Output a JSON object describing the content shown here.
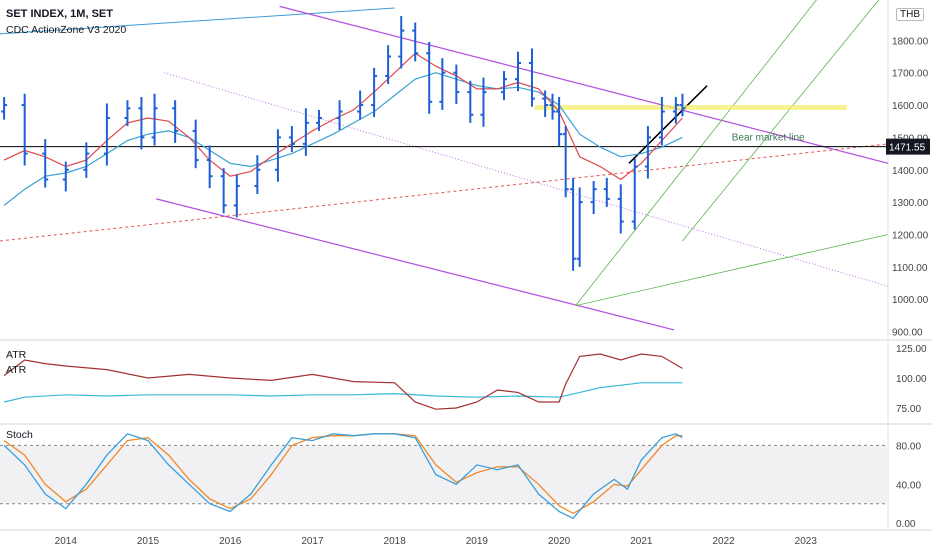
{
  "header": {
    "title": "SET INDEX, 1M, SET",
    "indicator": "CDC ActionZone V3 2020",
    "currency": "THB"
  },
  "colors": {
    "bar": "#1e5fd6",
    "ema_fast": "#e0474c",
    "ema_slow": "#3aa0d8",
    "channel": "#b24ee0",
    "pitchfork": "#5bb450",
    "atr_line": "#a33030",
    "atr_ma": "#38b8d8",
    "stoch_k": "#3aa0d8",
    "stoch_d": "#f08a2c",
    "support_zone": "#f5ef6a",
    "horizontal": "#000000",
    "price_badge": "#131722"
  },
  "chart_data": [
    {
      "type": "ohlc",
      "title": "SET INDEX, 1M, SET",
      "y_ticks": [
        "1800.00",
        "1700.00",
        "1600.00",
        "1500.00",
        "1400.00",
        "1300.00",
        "1200.00",
        "1100.00",
        "1000.00",
        "900.00"
      ],
      "ylim": [
        880,
        1900
      ],
      "x_ticks": [
        "2014",
        "2015",
        "2016",
        "2017",
        "2018",
        "2019",
        "2020",
        "2021",
        "2022",
        "2023"
      ],
      "xlim": [
        2013.2,
        2024.0
      ],
      "last_price": "1471.55",
      "horizontal_level": 1471.55,
      "annotation": "Bear market line",
      "series_close": [
        [
          2013.25,
          1600
        ],
        [
          2013.5,
          1450
        ],
        [
          2013.75,
          1370
        ],
        [
          2014.0,
          1400
        ],
        [
          2014.25,
          1450
        ],
        [
          2014.5,
          1560
        ],
        [
          2014.75,
          1590
        ],
        [
          2014.92,
          1500
        ],
        [
          2015.08,
          1590
        ],
        [
          2015.33,
          1520
        ],
        [
          2015.58,
          1430
        ],
        [
          2015.75,
          1380
        ],
        [
          2015.92,
          1290
        ],
        [
          2016.08,
          1350
        ],
        [
          2016.33,
          1400
        ],
        [
          2016.58,
          1500
        ],
        [
          2016.75,
          1480
        ],
        [
          2016.92,
          1545
        ],
        [
          2017.08,
          1560
        ],
        [
          2017.33,
          1580
        ],
        [
          2017.58,
          1600
        ],
        [
          2017.75,
          1690
        ],
        [
          2017.92,
          1750
        ],
        [
          2018.08,
          1830
        ],
        [
          2018.25,
          1760
        ],
        [
          2018.42,
          1610
        ],
        [
          2018.58,
          1700
        ],
        [
          2018.75,
          1640
        ],
        [
          2018.92,
          1570
        ],
        [
          2019.08,
          1640
        ],
        [
          2019.33,
          1680
        ],
        [
          2019.5,
          1730
        ],
        [
          2019.67,
          1620
        ],
        [
          2019.83,
          1600
        ],
        [
          2019.92,
          1580
        ],
        [
          2020.0,
          1510
        ],
        [
          2020.08,
          1340
        ],
        [
          2020.17,
          1125
        ],
        [
          2020.25,
          1300
        ],
        [
          2020.42,
          1340
        ],
        [
          2020.58,
          1310
        ],
        [
          2020.75,
          1240
        ],
        [
          2020.92,
          1410
        ],
        [
          2021.08,
          1500
        ],
        [
          2021.25,
          1580
        ],
        [
          2021.42,
          1600
        ],
        [
          2021.5,
          1590
        ]
      ],
      "ema_fast": [
        [
          2013.25,
          1430
        ],
        [
          2013.5,
          1460
        ],
        [
          2013.75,
          1440
        ],
        [
          2014.0,
          1410
        ],
        [
          2014.25,
          1430
        ],
        [
          2014.5,
          1490
        ],
        [
          2014.75,
          1545
        ],
        [
          2015.0,
          1560
        ],
        [
          2015.25,
          1550
        ],
        [
          2015.5,
          1500
        ],
        [
          2015.75,
          1430
        ],
        [
          2016.0,
          1380
        ],
        [
          2016.25,
          1395
        ],
        [
          2016.5,
          1440
        ],
        [
          2016.75,
          1480
        ],
        [
          2017.0,
          1520
        ],
        [
          2017.25,
          1555
        ],
        [
          2017.5,
          1585
        ],
        [
          2017.75,
          1640
        ],
        [
          2018.0,
          1700
        ],
        [
          2018.25,
          1760
        ],
        [
          2018.5,
          1720
        ],
        [
          2018.75,
          1690
        ],
        [
          2019.0,
          1650
        ],
        [
          2019.25,
          1650
        ],
        [
          2019.5,
          1670
        ],
        [
          2019.75,
          1650
        ],
        [
          2020.0,
          1580
        ],
        [
          2020.25,
          1440
        ],
        [
          2020.5,
          1410
        ],
        [
          2020.75,
          1370
        ],
        [
          2021.0,
          1420
        ],
        [
          2021.25,
          1490
        ],
        [
          2021.5,
          1560
        ]
      ],
      "ema_slow": [
        [
          2013.25,
          1290
        ],
        [
          2013.5,
          1340
        ],
        [
          2013.75,
          1380
        ],
        [
          2014.0,
          1390
        ],
        [
          2014.25,
          1410
        ],
        [
          2014.5,
          1450
        ],
        [
          2014.75,
          1490
        ],
        [
          2015.0,
          1510
        ],
        [
          2015.25,
          1520
        ],
        [
          2015.5,
          1500
        ],
        [
          2015.75,
          1460
        ],
        [
          2016.0,
          1420
        ],
        [
          2016.25,
          1410
        ],
        [
          2016.5,
          1430
        ],
        [
          2016.75,
          1450
        ],
        [
          2017.0,
          1480
        ],
        [
          2017.25,
          1510
        ],
        [
          2017.5,
          1545
        ],
        [
          2017.75,
          1580
        ],
        [
          2018.0,
          1630
        ],
        [
          2018.25,
          1680
        ],
        [
          2018.5,
          1700
        ],
        [
          2018.75,
          1680
        ],
        [
          2019.0,
          1660
        ],
        [
          2019.25,
          1650
        ],
        [
          2019.5,
          1655
        ],
        [
          2019.75,
          1640
        ],
        [
          2020.0,
          1600
        ],
        [
          2020.25,
          1510
        ],
        [
          2020.5,
          1470
        ],
        [
          2020.75,
          1440
        ],
        [
          2021.0,
          1450
        ],
        [
          2021.25,
          1470
        ],
        [
          2021.5,
          1500
        ]
      ]
    },
    {
      "type": "line",
      "title": "ATR",
      "label_lines": [
        "ATR",
        "ATR"
      ],
      "y_ticks": [
        "125.00",
        "100.00",
        "75.00"
      ],
      "ylim": [
        65,
        130
      ],
      "series": [
        {
          "values": [
            [
              2013.25,
              102
            ],
            [
              2013.5,
              115
            ],
            [
              2013.75,
              112
            ],
            [
              2014.0,
              110
            ],
            [
              2014.5,
              107
            ],
            [
              2015.0,
              100
            ],
            [
              2015.5,
              103
            ],
            [
              2016.0,
              100
            ],
            [
              2016.5,
              98
            ],
            [
              2017.0,
              103
            ],
            [
              2017.5,
              97
            ],
            [
              2018.0,
              96
            ],
            [
              2018.25,
              80
            ],
            [
              2018.5,
              74
            ],
            [
              2018.75,
              75
            ],
            [
              2019.0,
              80
            ],
            [
              2019.25,
              90
            ],
            [
              2019.5,
              88
            ],
            [
              2019.75,
              80
            ],
            [
              2020.0,
              80
            ],
            [
              2020.08,
              95
            ],
            [
              2020.25,
              118
            ],
            [
              2020.5,
              120
            ],
            [
              2020.75,
              115
            ],
            [
              2021.0,
              120
            ],
            [
              2021.25,
              118
            ],
            [
              2021.5,
              108
            ]
          ]
        },
        {
          "values": [
            [
              2013.25,
              80
            ],
            [
              2013.5,
              84
            ],
            [
              2014.0,
              86
            ],
            [
              2014.5,
              85
            ],
            [
              2015.0,
              86
            ],
            [
              2015.5,
              86
            ],
            [
              2016.0,
              86
            ],
            [
              2016.5,
              85
            ],
            [
              2017.0,
              86
            ],
            [
              2017.5,
              86
            ],
            [
              2018.0,
              87
            ],
            [
              2018.5,
              85
            ],
            [
              2019.0,
              84
            ],
            [
              2019.5,
              85
            ],
            [
              2020.0,
              84
            ],
            [
              2020.25,
              88
            ],
            [
              2020.5,
              92
            ],
            [
              2020.75,
              94
            ],
            [
              2021.0,
              96
            ],
            [
              2021.25,
              96
            ],
            [
              2021.5,
              96
            ]
          ]
        }
      ]
    },
    {
      "type": "line",
      "title": "Stoch",
      "y_ticks": [
        "80.00",
        "40.00",
        "0.00"
      ],
      "ylim": [
        -5,
        100
      ],
      "series": [
        {
          "values": [
            [
              2013.25,
              80
            ],
            [
              2013.5,
              60
            ],
            [
              2013.75,
              30
            ],
            [
              2014.0,
              15
            ],
            [
              2014.25,
              40
            ],
            [
              2014.5,
              70
            ],
            [
              2014.75,
              92
            ],
            [
              2015.0,
              85
            ],
            [
              2015.25,
              60
            ],
            [
              2015.5,
              40
            ],
            [
              2015.75,
              20
            ],
            [
              2016.0,
              12
            ],
            [
              2016.25,
              30
            ],
            [
              2016.5,
              60
            ],
            [
              2016.75,
              88
            ],
            [
              2017.0,
              85
            ],
            [
              2017.25,
              92
            ],
            [
              2017.5,
              90
            ],
            [
              2017.75,
              92
            ],
            [
              2018.0,
              92
            ],
            [
              2018.25,
              88
            ],
            [
              2018.5,
              50
            ],
            [
              2018.75,
              40
            ],
            [
              2019.0,
              60
            ],
            [
              2019.25,
              55
            ],
            [
              2019.5,
              60
            ],
            [
              2019.75,
              30
            ],
            [
              2020.0,
              12
            ],
            [
              2020.17,
              5
            ],
            [
              2020.42,
              30
            ],
            [
              2020.67,
              45
            ],
            [
              2020.83,
              35
            ],
            [
              2021.0,
              65
            ],
            [
              2021.25,
              88
            ],
            [
              2021.42,
              92
            ],
            [
              2021.5,
              88
            ]
          ]
        },
        {
          "values": [
            [
              2013.25,
              85
            ],
            [
              2013.5,
              70
            ],
            [
              2013.75,
              40
            ],
            [
              2014.0,
              22
            ],
            [
              2014.25,
              35
            ],
            [
              2014.5,
              60
            ],
            [
              2014.75,
              85
            ],
            [
              2015.0,
              88
            ],
            [
              2015.25,
              70
            ],
            [
              2015.5,
              45
            ],
            [
              2015.75,
              25
            ],
            [
              2016.0,
              15
            ],
            [
              2016.25,
              25
            ],
            [
              2016.5,
              50
            ],
            [
              2016.75,
              80
            ],
            [
              2017.0,
              88
            ],
            [
              2017.25,
              90
            ],
            [
              2017.5,
              90
            ],
            [
              2017.75,
              92
            ],
            [
              2018.0,
              92
            ],
            [
              2018.25,
              90
            ],
            [
              2018.5,
              60
            ],
            [
              2018.75,
              42
            ],
            [
              2019.0,
              52
            ],
            [
              2019.25,
              58
            ],
            [
              2019.5,
              58
            ],
            [
              2019.75,
              40
            ],
            [
              2020.0,
              18
            ],
            [
              2020.17,
              10
            ],
            [
              2020.42,
              22
            ],
            [
              2020.67,
              40
            ],
            [
              2020.83,
              38
            ],
            [
              2021.0,
              55
            ],
            [
              2021.25,
              80
            ],
            [
              2021.42,
              90
            ],
            [
              2021.5,
              90
            ]
          ]
        }
      ]
    }
  ]
}
